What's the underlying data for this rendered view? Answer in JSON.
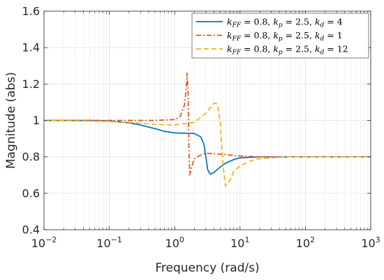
{
  "chart_data": {
    "type": "line",
    "title": "",
    "xlabel": "Frequency (rad/s)",
    "ylabel": "Magnitude (abs)",
    "xscale": "log",
    "xlim": [
      0.01,
      1000
    ],
    "ylim": [
      0.4,
      1.6
    ],
    "grid": true,
    "legend_position": "top-right",
    "x_ticks": [
      {
        "value": 0.01,
        "base": "10",
        "exp": "−2"
      },
      {
        "value": 0.1,
        "base": "10",
        "exp": "−1"
      },
      {
        "value": 1,
        "base": "10",
        "exp": "0"
      },
      {
        "value": 10,
        "base": "10",
        "exp": "1"
      },
      {
        "value": 100,
        "base": "10",
        "exp": "2"
      },
      {
        "value": 1000,
        "base": "10",
        "exp": "3"
      }
    ],
    "y_ticks": [
      {
        "value": 0.4,
        "label": "0.4"
      },
      {
        "value": 0.6,
        "label": "0.6"
      },
      {
        "value": 0.8,
        "label": "0.8"
      },
      {
        "value": 1.0,
        "label": "1"
      },
      {
        "value": 1.2,
        "label": "1.2"
      },
      {
        "value": 1.4,
        "label": "1.4"
      },
      {
        "value": 1.6,
        "label": "1.6"
      }
    ],
    "series": [
      {
        "name": "k_FF = 0.8, k_p = 2.5, k_d = 4",
        "legend": {
          "kff": "0.8",
          "kp": "2.5",
          "kd": "4"
        },
        "color": "#0072BD",
        "dash": "solid",
        "x": [
          0.01,
          0.05,
          0.1,
          0.2,
          0.3,
          0.5,
          0.7,
          1.0,
          1.2,
          1.5,
          2.0,
          2.5,
          2.8,
          3.0,
          3.2,
          3.5,
          4.0,
          5.0,
          6.0,
          8.0,
          10,
          20,
          100,
          1000
        ],
        "y": [
          1.0,
          1.0,
          0.997,
          0.987,
          0.975,
          0.955,
          0.94,
          0.932,
          0.93,
          0.93,
          0.928,
          0.91,
          0.87,
          0.8,
          0.73,
          0.705,
          0.715,
          0.745,
          0.765,
          0.785,
          0.795,
          0.8,
          0.8,
          0.8
        ]
      },
      {
        "name": "k_FF = 0.8, k_p = 2.5, k_d = 1",
        "legend": {
          "kff": "0.8",
          "kp": "2.5",
          "kd": "1"
        },
        "color": "#D95319",
        "dash": "dashdot",
        "x": [
          0.01,
          0.1,
          0.5,
          1.0,
          1.2,
          1.4,
          1.5,
          1.55,
          1.6,
          1.65,
          1.7,
          1.8,
          2.0,
          2.5,
          3.0,
          5.0,
          10,
          20,
          100,
          1000
        ],
        "y": [
          1.0,
          1.0,
          1.0,
          1.005,
          1.02,
          1.08,
          1.17,
          1.26,
          1.15,
          0.85,
          0.7,
          0.74,
          0.79,
          0.81,
          0.82,
          0.815,
          0.805,
          0.8,
          0.8,
          0.8
        ]
      },
      {
        "name": "k_FF = 0.8, k_p = 2.5, k_d = 12",
        "legend": {
          "kff": "0.8",
          "kp": "2.5",
          "kd": "12"
        },
        "color": "#EDB120",
        "dash": "dashed",
        "x": [
          0.01,
          0.1,
          0.3,
          0.5,
          1.0,
          2.0,
          3.0,
          4.0,
          4.5,
          5.0,
          5.5,
          6.0,
          7.0,
          8.0,
          10,
          15,
          20,
          50,
          100,
          1000
        ],
        "y": [
          1.0,
          0.995,
          0.985,
          0.978,
          0.975,
          0.99,
          1.04,
          1.095,
          1.09,
          0.98,
          0.75,
          0.64,
          0.67,
          0.72,
          0.75,
          0.78,
          0.79,
          0.8,
          0.8,
          0.8
        ]
      }
    ]
  }
}
